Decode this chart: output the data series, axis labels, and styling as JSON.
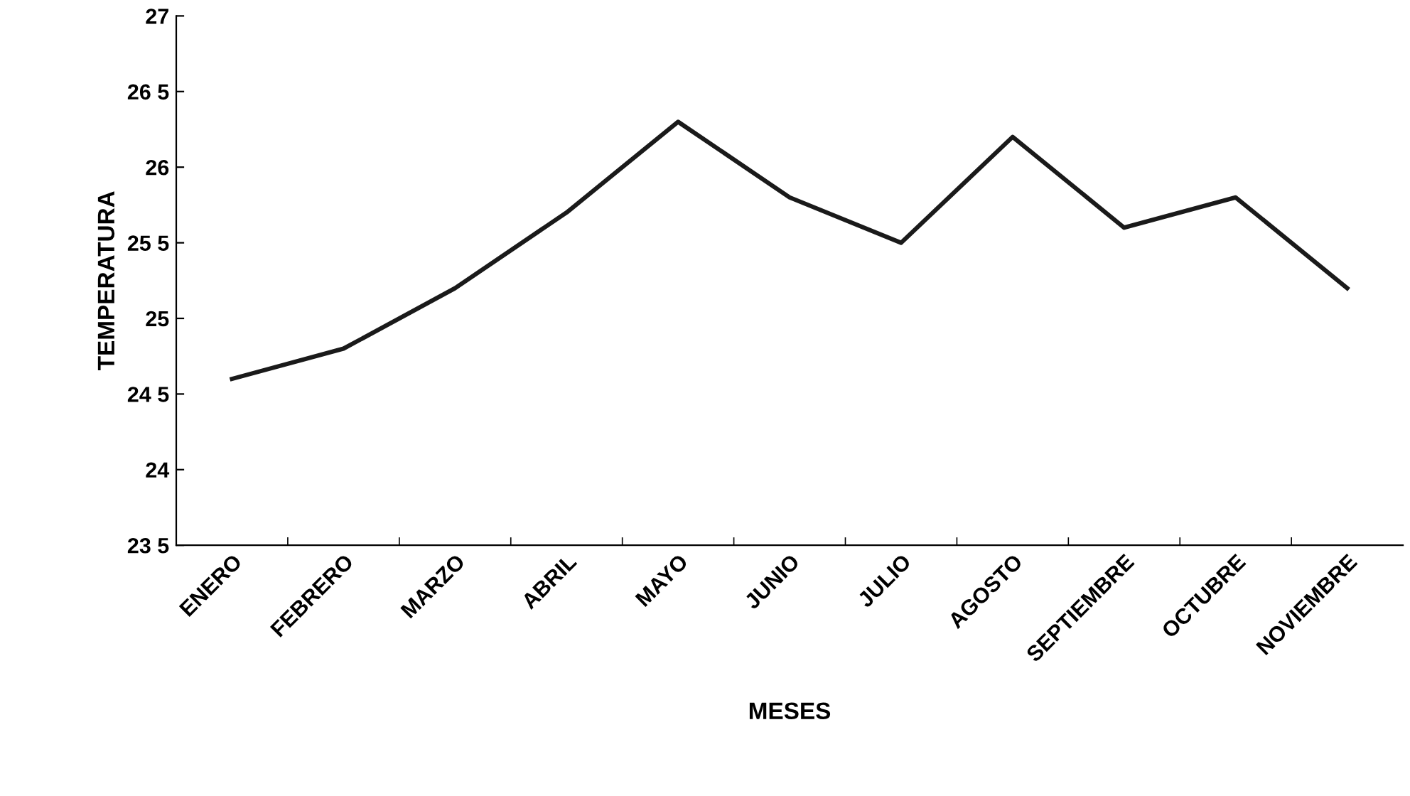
{
  "chart_data": {
    "type": "line",
    "xlabel": "MESES",
    "ylabel": "TEMPERATURA",
    "categories": [
      "ENERO",
      "FEBRERO",
      "MARZO",
      "ABRIL",
      "MAYO",
      "JUNIO",
      "JULIO",
      "AGOSTO",
      "SEPTIEMBRE",
      "OCTUBRE",
      "NOVIEMBRE"
    ],
    "series": [
      {
        "color": "#1a1a1a",
        "values": [
          24.6,
          24.8,
          25.2,
          25.7,
          26.3,
          25.8,
          25.5,
          26.2,
          25.6,
          25.8,
          25.2
        ]
      }
    ],
    "ylim": [
      23.5,
      27
    ],
    "yticks": [
      {
        "value": 23.5,
        "label": "23 5"
      },
      24,
      {
        "value": 24.5,
        "label": "24 5"
      },
      25,
      {
        "value": 25.5,
        "label": "25 5"
      },
      26,
      {
        "value": 26.5,
        "label": "26 5"
      },
      27
    ],
    "grid": false,
    "marker": "none",
    "line_style": "solid"
  }
}
